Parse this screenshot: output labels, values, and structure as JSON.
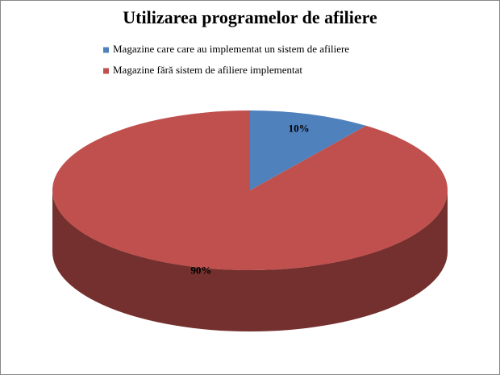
{
  "chart_data": {
    "type": "pie",
    "title": "Utilizarea programelor de afiliere",
    "categories": [
      "Magazine care care au implementat un sistem de afiliere",
      "Magazine fără sistem de afiliere implementat"
    ],
    "values": [
      10,
      90
    ],
    "value_labels": [
      "10%",
      "90%"
    ],
    "colors": [
      "#4f81bd",
      "#c0504d"
    ]
  }
}
